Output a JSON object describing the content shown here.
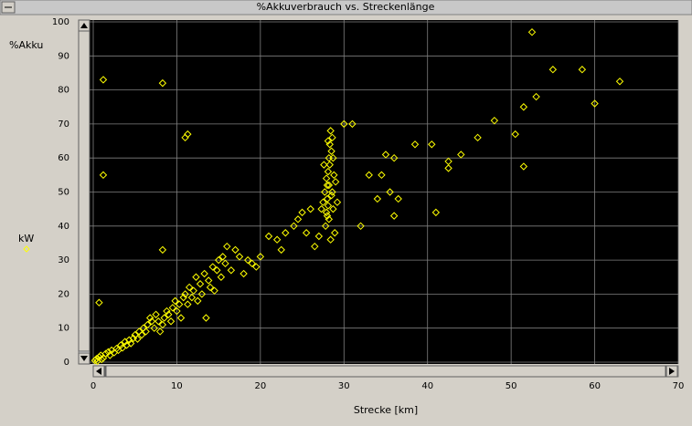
{
  "chart_data": {
    "type": "scatter",
    "title": "%Akkuverbrauch vs. Streckenlänge",
    "y_label": "%Akku",
    "x_label": "Strecke [km]",
    "xlim": [
      0,
      70
    ],
    "ylim": [
      0,
      100
    ],
    "xticks": [
      0,
      10,
      20,
      30,
      40,
      50,
      60,
      70
    ],
    "yticks": [
      0,
      10,
      20,
      30,
      40,
      50,
      60,
      70,
      80,
      90,
      100
    ],
    "grid": true,
    "x": [
      0.2,
      0.4,
      0.5,
      0.7,
      0.9,
      1,
      1.2,
      1.5,
      1.8,
      2,
      2.2,
      2.5,
      2.8,
      3,
      3.3,
      3.5,
      3.8,
      4,
      4.3,
      4.5,
      4.8,
      5,
      5.3,
      5.5,
      5.8,
      6,
      6.3,
      6.5,
      6.8,
      7,
      7.3,
      7.5,
      7.8,
      8,
      8.3,
      8.5,
      8.8,
      9,
      9.3,
      9.5,
      9.8,
      10,
      10.3,
      10.5,
      10.8,
      11,
      11.3,
      11.5,
      11.8,
      12,
      12.3,
      12.5,
      12.8,
      13,
      13.3,
      13.5,
      13.8,
      14,
      14.3,
      14.5,
      14.8,
      15,
      15.3,
      15.5,
      15.8,
      16,
      16.5,
      17,
      17.5,
      18,
      18.5,
      19,
      19.5,
      20,
      21,
      22,
      22.5,
      23,
      24,
      24.5,
      25,
      25.5,
      26,
      26.5,
      27,
      27.8,
      27.9,
      28,
      28,
      28.1,
      28.2,
      28.3,
      28.4,
      27.7,
      27.9,
      28.1,
      28.2,
      28.3,
      28.5,
      28.6,
      28.7,
      28.8,
      28.9,
      27.6,
      27.5,
      28.4,
      28.6,
      28,
      28.2,
      28.5,
      29,
      29.2,
      27.3,
      28.7,
      28.1,
      1.2,
      8.3,
      11.3,
      11,
      1.2,
      8.3,
      0.7,
      52.5,
      55,
      58.5,
      60,
      63,
      51.5,
      53,
      48,
      50.5,
      46,
      44,
      42.5,
      42.5,
      40.5,
      38.5,
      51.5,
      41,
      36,
      35,
      34.5,
      35.5,
      36.5,
      36,
      34,
      33,
      32,
      31,
      30
    ],
    "series": [
      {
        "name": "kW",
        "color": "#ffff00",
        "values": [
          0.5,
          1,
          0.3,
          1.5,
          2,
          0.8,
          1.2,
          2.5,
          3,
          2,
          3.5,
          2.8,
          4,
          3.5,
          5,
          4.2,
          6,
          5,
          6.5,
          5.5,
          7,
          8,
          6.8,
          9,
          8,
          10,
          9,
          11,
          13,
          12,
          10,
          14,
          12,
          9,
          11,
          13,
          15,
          14,
          12,
          16,
          18,
          15,
          17,
          13,
          19,
          20,
          17,
          22,
          19,
          21,
          25,
          18,
          23,
          20,
          26,
          13,
          24,
          22,
          28,
          21,
          27,
          30,
          25,
          31,
          29,
          34,
          27,
          33,
          31,
          26,
          30,
          29,
          28,
          31,
          37,
          36,
          33,
          38,
          40,
          42,
          44,
          38,
          45,
          34,
          37,
          40,
          44,
          48,
          52,
          56,
          60,
          64,
          68,
          50,
          54,
          46,
          42,
          58,
          62,
          50,
          45,
          55,
          38,
          58,
          47,
          36,
          66,
          43,
          52,
          49,
          53,
          47,
          45,
          60,
          65,
          83,
          82,
          67,
          66,
          55,
          33,
          17.5,
          97,
          86,
          86,
          76,
          82.5,
          75,
          78,
          71,
          67,
          66,
          61,
          59,
          57,
          64,
          64,
          57.5,
          44,
          60,
          61,
          55,
          50,
          48,
          43,
          48,
          55,
          40,
          70,
          70
        ]
      }
    ]
  }
}
